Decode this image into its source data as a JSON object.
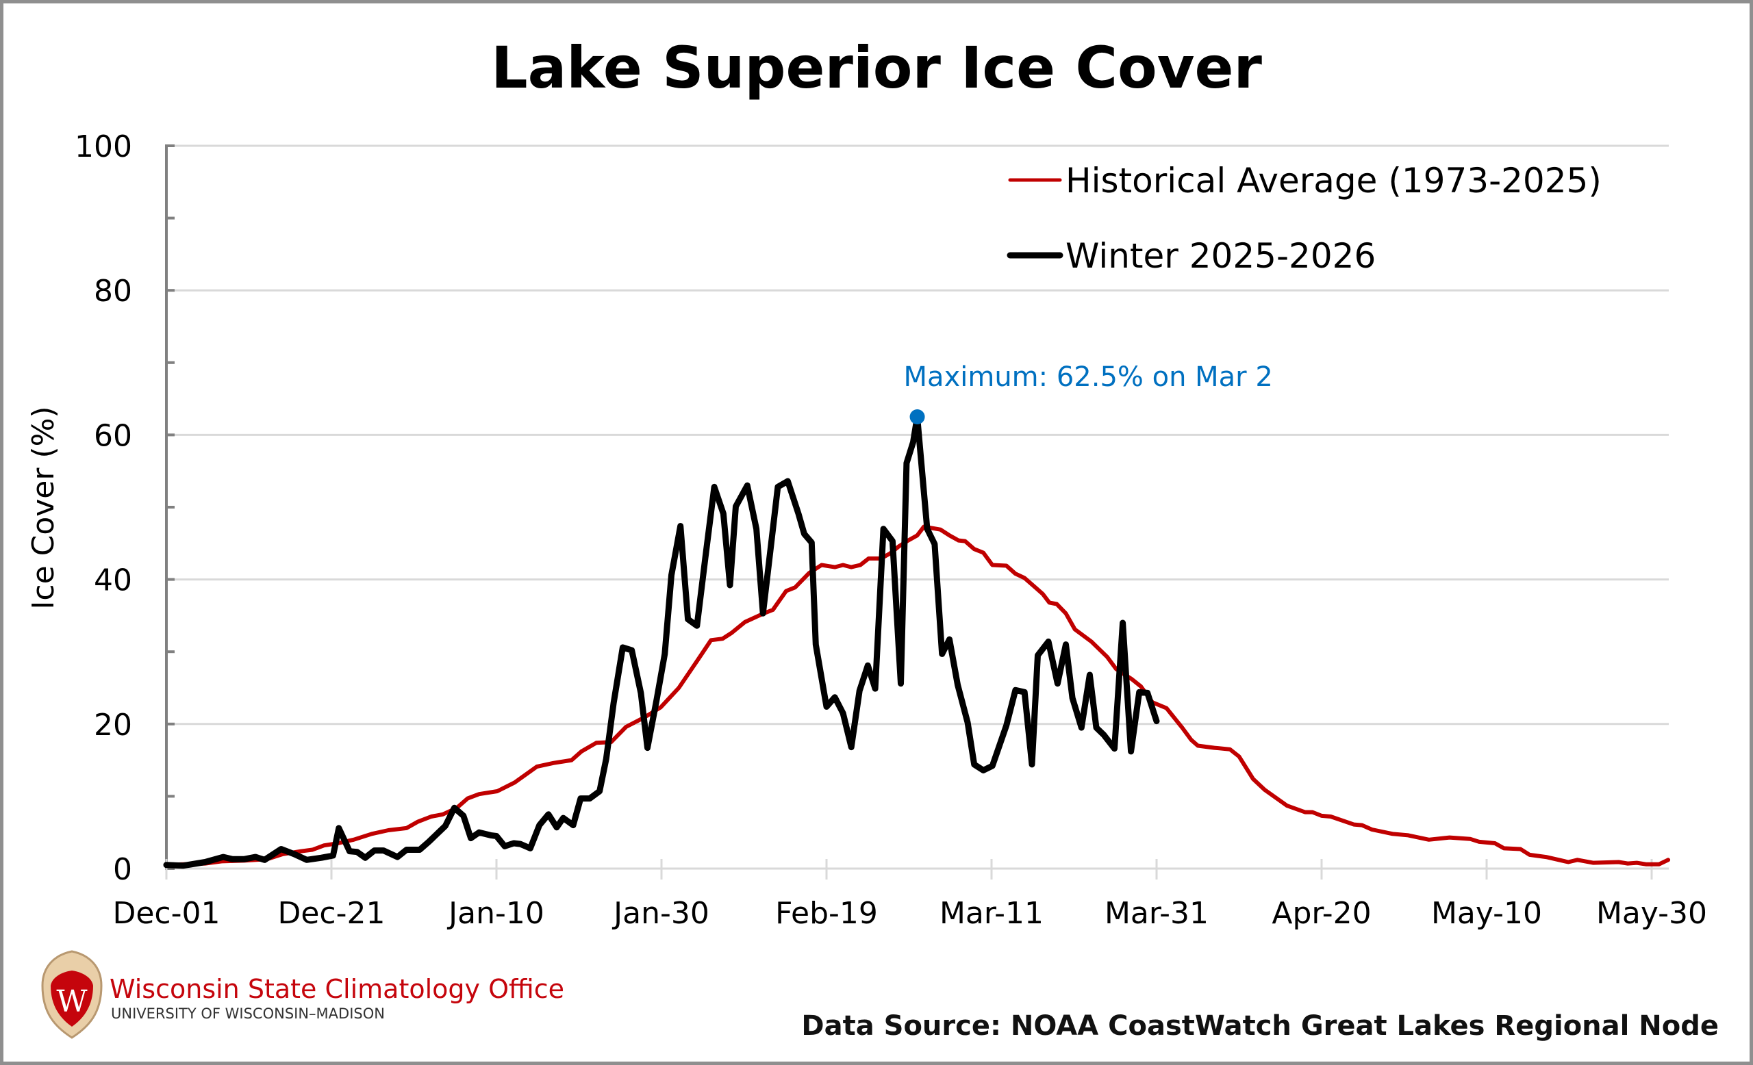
{
  "colors": {
    "historical": "#c00000",
    "winter": "#000000",
    "annotation": "#0070c0",
    "grid": "#d9d9d9",
    "axis": "#808080",
    "org_red": "#c5050c"
  },
  "footer": {
    "org_name": "Wisconsin State Climatology Office",
    "university": "UNIVERSITY OF WISCONSIN–MADISON",
    "data_source": "Data Source: NOAA CoastWatch Great Lakes Regional Node",
    "logo_letter": "W"
  },
  "chart_data": {
    "type": "line",
    "title": "Lake Superior Ice Cover",
    "xlabel": "",
    "ylabel": "Ice Cover (%)",
    "ylim": [
      0,
      100
    ],
    "yticks": [
      0,
      20,
      40,
      60,
      80,
      100
    ],
    "x_unit": "days since Dec-01",
    "xlim": [
      0,
      182
    ],
    "xticks": [
      {
        "day": 0,
        "label": "Dec-01"
      },
      {
        "day": 20,
        "label": "Dec-21"
      },
      {
        "day": 40,
        "label": "Jan-10"
      },
      {
        "day": 60,
        "label": "Jan-30"
      },
      {
        "day": 80,
        "label": "Feb-19"
      },
      {
        "day": 100,
        "label": "Mar-11"
      },
      {
        "day": 120,
        "label": "Mar-31"
      },
      {
        "day": 140,
        "label": "Apr-20"
      },
      {
        "day": 160,
        "label": "May-10"
      },
      {
        "day": 180,
        "label": "May-30"
      }
    ],
    "grid": "horizontal",
    "legend_position": "top-right",
    "series": [
      {
        "name": "Historical Average (1973-2025)",
        "key": "historical",
        "points": [
          [
            0,
            0.5
          ],
          [
            4.7,
            0.7
          ],
          [
            6.7,
            1.0
          ],
          [
            9.4,
            1.1
          ],
          [
            12.2,
            1.3
          ],
          [
            14.1,
            2.0
          ],
          [
            16.3,
            2.4
          ],
          [
            17.7,
            2.6
          ],
          [
            19.1,
            3.2
          ],
          [
            20.8,
            3.5
          ],
          [
            22.7,
            4.0
          ],
          [
            24.9,
            4.8
          ],
          [
            26.9,
            5.3
          ],
          [
            29.1,
            5.6
          ],
          [
            30.5,
            6.5
          ],
          [
            32.1,
            7.2
          ],
          [
            33.5,
            7.5
          ],
          [
            35.2,
            8.4
          ],
          [
            36.5,
            9.7
          ],
          [
            37.9,
            10.3
          ],
          [
            40.1,
            10.7
          ],
          [
            42.2,
            11.9
          ],
          [
            44.9,
            14.1
          ],
          [
            46.9,
            14.6
          ],
          [
            49.1,
            15.0
          ],
          [
            50.3,
            16.2
          ],
          [
            52.1,
            17.4
          ],
          [
            53.9,
            17.5
          ],
          [
            55.7,
            19.6
          ],
          [
            57.9,
            20.9
          ],
          [
            59.9,
            22.3
          ],
          [
            62.1,
            25.0
          ],
          [
            64.3,
            28.7
          ],
          [
            66.0,
            31.6
          ],
          [
            67.4,
            31.8
          ],
          [
            68.5,
            32.6
          ],
          [
            70.1,
            34.1
          ],
          [
            72.4,
            35.3
          ],
          [
            73.5,
            35.8
          ],
          [
            75.1,
            38.4
          ],
          [
            76.2,
            38.9
          ],
          [
            77.9,
            40.9
          ],
          [
            79.4,
            42.0
          ],
          [
            81.0,
            41.7
          ],
          [
            82.0,
            42.0
          ],
          [
            83.0,
            41.7
          ],
          [
            84.1,
            42.0
          ],
          [
            85.1,
            42.9
          ],
          [
            86.6,
            42.9
          ],
          [
            87.7,
            43.6
          ],
          [
            88.8,
            44.6
          ],
          [
            89.9,
            45.4
          ],
          [
            91.0,
            46.1
          ],
          [
            91.8,
            47.3
          ],
          [
            93.8,
            46.9
          ],
          [
            94.9,
            46.1
          ],
          [
            96.0,
            45.4
          ],
          [
            96.8,
            45.3
          ],
          [
            97.9,
            44.2
          ],
          [
            99.0,
            43.7
          ],
          [
            100.1,
            42.0
          ],
          [
            101.8,
            41.9
          ],
          [
            102.9,
            40.8
          ],
          [
            104.0,
            40.2
          ],
          [
            105.4,
            38.8
          ],
          [
            106.2,
            38.0
          ],
          [
            107.0,
            36.8
          ],
          [
            107.9,
            36.6
          ],
          [
            109.0,
            35.3
          ],
          [
            110.1,
            33.1
          ],
          [
            112.1,
            31.4
          ],
          [
            114.0,
            29.3
          ],
          [
            115.1,
            27.6
          ],
          [
            117.0,
            26.2
          ],
          [
            118.1,
            25.2
          ],
          [
            119.5,
            23.0
          ],
          [
            121.2,
            22.2
          ],
          [
            123.1,
            19.5
          ],
          [
            124.2,
            17.8
          ],
          [
            125.0,
            17.0
          ],
          [
            127.0,
            16.7
          ],
          [
            128.9,
            16.5
          ],
          [
            130.0,
            15.5
          ],
          [
            131.7,
            12.4
          ],
          [
            133.1,
            10.9
          ],
          [
            135.8,
            8.7
          ],
          [
            138.0,
            7.8
          ],
          [
            138.9,
            7.8
          ],
          [
            140.0,
            7.3
          ],
          [
            141.1,
            7.2
          ],
          [
            143.9,
            6.1
          ],
          [
            144.9,
            6.0
          ],
          [
            146.1,
            5.4
          ],
          [
            148.6,
            4.8
          ],
          [
            150.5,
            4.6
          ],
          [
            153.0,
            4.0
          ],
          [
            155.5,
            4.3
          ],
          [
            158.0,
            4.1
          ],
          [
            159.1,
            3.7
          ],
          [
            161.0,
            3.5
          ],
          [
            162.1,
            2.8
          ],
          [
            164.1,
            2.7
          ],
          [
            165.2,
            1.9
          ],
          [
            167.2,
            1.6
          ],
          [
            169.9,
            0.9
          ],
          [
            171.0,
            1.2
          ],
          [
            172.9,
            0.8
          ],
          [
            176.0,
            0.9
          ],
          [
            177.1,
            0.7
          ],
          [
            178.2,
            0.8
          ],
          [
            179.3,
            0.6
          ],
          [
            180.9,
            0.6
          ],
          [
            182.0,
            1.2
          ]
        ]
      },
      {
        "name": "Winter 2025-2026",
        "key": "winter",
        "points": [
          [
            0,
            0.5
          ],
          [
            2.0,
            0.4
          ],
          [
            4.7,
            0.9
          ],
          [
            6.9,
            1.6
          ],
          [
            8.0,
            1.3
          ],
          [
            9.4,
            1.3
          ],
          [
            10.8,
            1.6
          ],
          [
            11.9,
            1.2
          ],
          [
            13.9,
            2.7
          ],
          [
            15.5,
            2.0
          ],
          [
            17.0,
            1.2
          ],
          [
            18.8,
            1.5
          ],
          [
            20.2,
            1.8
          ],
          [
            20.9,
            5.6
          ],
          [
            22.2,
            2.4
          ],
          [
            23.1,
            2.3
          ],
          [
            24.1,
            1.5
          ],
          [
            25.2,
            2.5
          ],
          [
            26.3,
            2.5
          ],
          [
            28.0,
            1.6
          ],
          [
            29.1,
            2.6
          ],
          [
            30.7,
            2.6
          ],
          [
            31.8,
            3.7
          ],
          [
            33.8,
            5.9
          ],
          [
            34.9,
            8.4
          ],
          [
            36.0,
            7.3
          ],
          [
            36.9,
            4.2
          ],
          [
            37.9,
            5.0
          ],
          [
            39.3,
            4.6
          ],
          [
            40.0,
            4.5
          ],
          [
            41.0,
            3.1
          ],
          [
            42.1,
            3.5
          ],
          [
            42.9,
            3.4
          ],
          [
            44.1,
            2.8
          ],
          [
            45.2,
            6.0
          ],
          [
            46.3,
            7.5
          ],
          [
            47.3,
            5.7
          ],
          [
            48.1,
            7.0
          ],
          [
            49.3,
            6.0
          ],
          [
            50.2,
            9.7
          ],
          [
            51.3,
            9.7
          ],
          [
            52.5,
            10.7
          ],
          [
            53.3,
            15.2
          ],
          [
            54.2,
            22.9
          ],
          [
            55.3,
            30.6
          ],
          [
            56.4,
            30.2
          ],
          [
            57.5,
            24.3
          ],
          [
            58.3,
            16.7
          ],
          [
            59.4,
            23.3
          ],
          [
            60.4,
            29.7
          ],
          [
            61.2,
            40.6
          ],
          [
            62.3,
            47.4
          ],
          [
            63.2,
            34.5
          ],
          [
            64.3,
            33.6
          ],
          [
            65.3,
            42.9
          ],
          [
            66.4,
            52.8
          ],
          [
            67.5,
            49.1
          ],
          [
            68.3,
            39.2
          ],
          [
            69.0,
            50.1
          ],
          [
            70.4,
            53.0
          ],
          [
            71.5,
            47.0
          ],
          [
            72.3,
            35.3
          ],
          [
            73.4,
            46.0
          ],
          [
            74.1,
            52.8
          ],
          [
            75.3,
            53.6
          ],
          [
            76.6,
            49.1
          ],
          [
            77.3,
            46.3
          ],
          [
            78.2,
            45.1
          ],
          [
            78.7,
            31.0
          ],
          [
            80.0,
            22.4
          ],
          [
            81.0,
            23.7
          ],
          [
            82.0,
            21.5
          ],
          [
            83.0,
            16.8
          ],
          [
            84.0,
            24.6
          ],
          [
            85.0,
            28.1
          ],
          [
            85.9,
            24.9
          ],
          [
            86.9,
            47.0
          ],
          [
            88.0,
            45.3
          ],
          [
            89.0,
            25.6
          ],
          [
            89.7,
            56.1
          ],
          [
            90.5,
            59.0
          ],
          [
            91.0,
            62.5
          ],
          [
            92.2,
            47.0
          ],
          [
            93.1,
            44.9
          ],
          [
            94.0,
            29.7
          ],
          [
            94.9,
            31.7
          ],
          [
            95.9,
            25.4
          ],
          [
            97.1,
            20.2
          ],
          [
            97.9,
            14.4
          ],
          [
            99.0,
            13.6
          ],
          [
            100.1,
            14.2
          ],
          [
            101.8,
            19.8
          ],
          [
            102.9,
            24.7
          ],
          [
            104.0,
            24.4
          ],
          [
            104.9,
            14.4
          ],
          [
            105.6,
            29.5
          ],
          [
            106.9,
            31.4
          ],
          [
            108.0,
            25.6
          ],
          [
            109.0,
            31.0
          ],
          [
            109.8,
            23.6
          ],
          [
            110.9,
            19.5
          ],
          [
            111.9,
            26.8
          ],
          [
            112.7,
            19.5
          ],
          [
            113.6,
            18.5
          ],
          [
            114.9,
            16.6
          ],
          [
            115.9,
            34.0
          ],
          [
            116.9,
            16.2
          ],
          [
            117.9,
            24.4
          ],
          [
            118.9,
            24.3
          ],
          [
            120.0,
            20.4
          ]
        ]
      }
    ],
    "annotations": [
      {
        "text": "Maximum: 62.5% on Mar 2",
        "day": 91,
        "value": 62.5,
        "marker": "dot"
      }
    ]
  }
}
